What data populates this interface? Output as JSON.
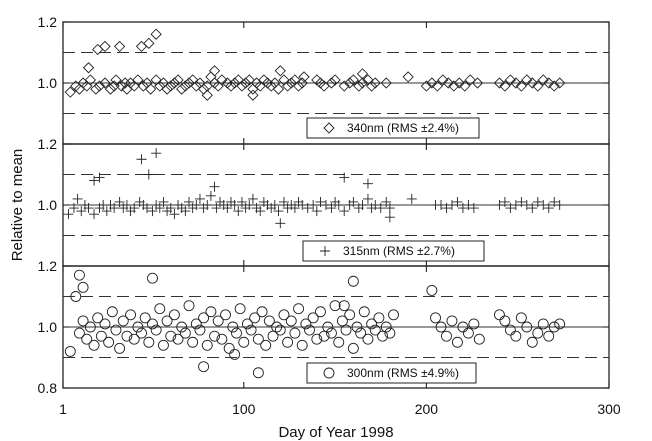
{
  "chart_data": {
    "type": "scatter",
    "xlabel": "Day of Year 1998",
    "ylabel": "Relative to mean",
    "xlim": [
      1,
      300
    ],
    "x_ticks": [
      1,
      100,
      200,
      300
    ],
    "x_tick_labels": [
      "1",
      "100",
      "200",
      "300"
    ],
    "reference_lines": {
      "solid": 1.0,
      "dashed": [
        0.9,
        1.1
      ]
    },
    "grid": false,
    "legend_placement": "bottom-center of each panel",
    "panels": [
      {
        "name": "340nm (RMS ±2.4%)",
        "marker": "diamond",
        "ylim": [
          0.8,
          1.2
        ],
        "y_ticks": [
          1.0,
          1.2
        ],
        "y_tick_labels": [
          "1.0",
          "1.2"
        ],
        "x": [
          5,
          8,
          10,
          12,
          14,
          16,
          19,
          21,
          24,
          27,
          29,
          30,
          33,
          35,
          36,
          38,
          40,
          42,
          45,
          47,
          49,
          52,
          54,
          56,
          58,
          60,
          62,
          64,
          66,
          68,
          70,
          72,
          74,
          76,
          78,
          80,
          82,
          84,
          86,
          88,
          91,
          93,
          95,
          97,
          99,
          101,
          103,
          105,
          107,
          109,
          111,
          113,
          115,
          117,
          119,
          122,
          124,
          126,
          128,
          130,
          132,
          140,
          142,
          144,
          148,
          150,
          155,
          158,
          160,
          163,
          165,
          168,
          170,
          172,
          178,
          190,
          200,
          203,
          206,
          209,
          212,
          215,
          218,
          221,
          224,
          228,
          240,
          243,
          246,
          249,
          252,
          255,
          258,
          261,
          264,
          267,
          270,
          273,
          15,
          20,
          24,
          32,
          44,
          48,
          52,
          80,
          84,
          105,
          120,
          133,
          165
        ],
        "y": [
          0.97,
          0.99,
          0.98,
          1.0,
          0.99,
          1.01,
          0.98,
          0.99,
          1.0,
          0.98,
          0.99,
          1.01,
          0.99,
          1.0,
          0.98,
          1.0,
          0.99,
          1.01,
          0.99,
          1.0,
          0.98,
          1.01,
          0.99,
          1.0,
          0.98,
          0.99,
          1.0,
          1.01,
          0.98,
          0.99,
          1.0,
          1.01,
          0.99,
          1.0,
          0.98,
          0.99,
          1.02,
          1.0,
          0.99,
          1.01,
          1.0,
          0.99,
          1.0,
          1.01,
          0.99,
          1.0,
          1.01,
          0.98,
          1.0,
          0.99,
          1.01,
          1.0,
          0.99,
          1.0,
          0.98,
          1.01,
          0.99,
          1.0,
          1.01,
          0.99,
          1.0,
          1.01,
          1.0,
          0.99,
          1.0,
          1.01,
          0.99,
          1.0,
          1.01,
          0.99,
          1.0,
          1.01,
          0.99,
          1.0,
          1.0,
          1.02,
          0.99,
          1.0,
          0.99,
          1.01,
          1.0,
          0.99,
          1.0,
          0.99,
          1.01,
          1.0,
          1.0,
          0.99,
          1.01,
          1.0,
          0.99,
          1.01,
          1.0,
          0.99,
          1.01,
          1.0,
          0.99,
          1.0,
          1.05,
          1.11,
          1.12,
          1.12,
          1.12,
          1.13,
          1.16,
          0.96,
          1.04,
          0.96,
          1.04,
          1.02,
          1.03
        ]
      },
      {
        "name": "315nm (RMS ±2.7%)",
        "marker": "plus",
        "ylim": [
          0.8,
          1.2
        ],
        "y_ticks": [
          1.0,
          1.2
        ],
        "y_tick_labels": [
          "1.0",
          "1.2"
        ],
        "x": [
          4,
          7,
          9,
          11,
          13,
          15,
          18,
          21,
          23,
          25,
          27,
          29,
          32,
          34,
          36,
          38,
          40,
          43,
          45,
          47,
          50,
          52,
          54,
          56,
          58,
          60,
          62,
          64,
          66,
          68,
          70,
          72,
          74,
          76,
          78,
          80,
          82,
          85,
          87,
          89,
          91,
          93,
          95,
          97,
          99,
          101,
          103,
          105,
          107,
          109,
          111,
          113,
          115,
          117,
          119,
          122,
          124,
          126,
          128,
          130,
          132,
          135,
          138,
          140,
          142,
          145,
          148,
          150,
          152,
          155,
          158,
          160,
          163,
          165,
          168,
          170,
          172,
          175,
          178,
          180,
          192,
          205,
          208,
          211,
          214,
          217,
          220,
          223,
          226,
          240,
          243,
          246,
          249,
          252,
          255,
          258,
          261,
          264,
          267,
          270,
          273,
          18,
          21,
          44,
          48,
          52,
          84,
          120,
          155,
          168,
          180
        ],
        "y": [
          0.97,
          0.99,
          1.02,
          0.98,
          1.0,
          0.99,
          0.97,
          0.99,
          1.0,
          0.98,
          1.0,
          0.99,
          1.01,
          0.99,
          1.0,
          0.98,
          0.99,
          1.01,
          1.0,
          0.99,
          0.98,
          1.0,
          0.99,
          1.01,
          0.98,
          0.99,
          0.97,
          1.0,
          0.99,
          0.98,
          1.01,
          0.99,
          1.0,
          1.02,
          0.99,
          1.0,
          1.03,
          0.99,
          1.01,
          1.0,
          0.99,
          1.01,
          1.0,
          0.98,
          1.01,
          0.99,
          1.0,
          1.02,
          0.99,
          0.98,
          1.01,
          1.0,
          0.99,
          1.0,
          0.98,
          1.01,
          0.99,
          1.0,
          0.99,
          1.01,
          1.0,
          0.99,
          1.0,
          0.98,
          1.01,
          1.0,
          0.99,
          1.01,
          1.0,
          0.98,
          1.0,
          1.01,
          0.99,
          1.0,
          1.02,
          0.99,
          1.0,
          0.99,
          1.01,
          0.99,
          1.02,
          1.0,
          1.0,
          0.99,
          1.0,
          1.01,
          0.99,
          1.0,
          0.99,
          1.0,
          1.01,
          0.99,
          1.0,
          1.01,
          1.0,
          0.99,
          1.01,
          1.0,
          0.99,
          1.01,
          1.0,
          1.08,
          1.09,
          1.15,
          1.1,
          1.17,
          1.06,
          0.94,
          1.09,
          1.07,
          0.96
        ]
      },
      {
        "name": "300nm (RMS ±4.9%)",
        "marker": "circle",
        "ylim": [
          0.8,
          1.2
        ],
        "y_ticks": [
          0.8,
          1.0,
          1.2
        ],
        "y_tick_labels": [
          "0.8",
          "1.0",
          "1.2"
        ],
        "x": [
          5,
          8,
          10,
          12,
          14,
          16,
          18,
          20,
          22,
          24,
          26,
          28,
          30,
          32,
          34,
          36,
          38,
          40,
          42,
          44,
          46,
          48,
          50,
          52,
          54,
          56,
          58,
          60,
          62,
          64,
          66,
          68,
          70,
          72,
          74,
          76,
          78,
          80,
          82,
          84,
          86,
          88,
          90,
          92,
          94,
          96,
          98,
          100,
          102,
          104,
          106,
          108,
          110,
          112,
          114,
          116,
          118,
          120,
          122,
          124,
          126,
          128,
          130,
          132,
          134,
          136,
          138,
          140,
          142,
          144,
          146,
          148,
          150,
          152,
          154,
          156,
          158,
          160,
          162,
          164,
          166,
          168,
          170,
          172,
          174,
          176,
          178,
          180,
          182,
          205,
          208,
          211,
          214,
          217,
          220,
          223,
          226,
          229,
          240,
          243,
          246,
          249,
          252,
          255,
          258,
          261,
          264,
          267,
          270,
          273,
          10,
          12,
          50,
          78,
          95,
          108,
          155,
          160,
          203
        ],
        "y": [
          0.92,
          1.1,
          0.98,
          1.02,
          0.96,
          1.0,
          0.94,
          1.03,
          0.97,
          1.01,
          0.95,
          1.05,
          0.99,
          0.93,
          1.02,
          0.97,
          1.04,
          0.96,
          1.0,
          0.98,
          1.03,
          0.95,
          1.01,
          0.99,
          1.06,
          0.94,
          1.02,
          0.97,
          1.04,
          0.96,
          1.0,
          0.98,
          1.07,
          0.95,
          1.01,
          0.99,
          1.03,
          0.94,
          1.05,
          0.97,
          1.02,
          0.96,
          1.04,
          0.93,
          1.0,
          0.98,
          1.06,
          0.95,
          1.01,
          0.99,
          1.03,
          0.96,
          1.05,
          0.94,
          1.02,
          0.97,
          1.0,
          0.99,
          1.04,
          0.95,
          1.02,
          0.98,
          1.06,
          0.94,
          1.01,
          0.99,
          1.03,
          0.96,
          1.05,
          0.97,
          1.0,
          0.98,
          1.07,
          0.95,
          1.02,
          0.99,
          1.04,
          0.93,
          1.0,
          0.98,
          1.05,
          0.96,
          1.01,
          0.99,
          1.03,
          0.97,
          1.0,
          0.98,
          1.04,
          1.03,
          1.0,
          0.97,
          1.02,
          0.95,
          1.0,
          0.98,
          1.01,
          0.96,
          1.04,
          1.02,
          0.99,
          0.97,
          1.03,
          1.0,
          0.95,
          0.98,
          1.01,
          0.97,
          1.0,
          1.01,
          1.17,
          1.13,
          1.16,
          0.87,
          0.91,
          0.85,
          1.07,
          1.15,
          1.12
        ]
      }
    ]
  }
}
